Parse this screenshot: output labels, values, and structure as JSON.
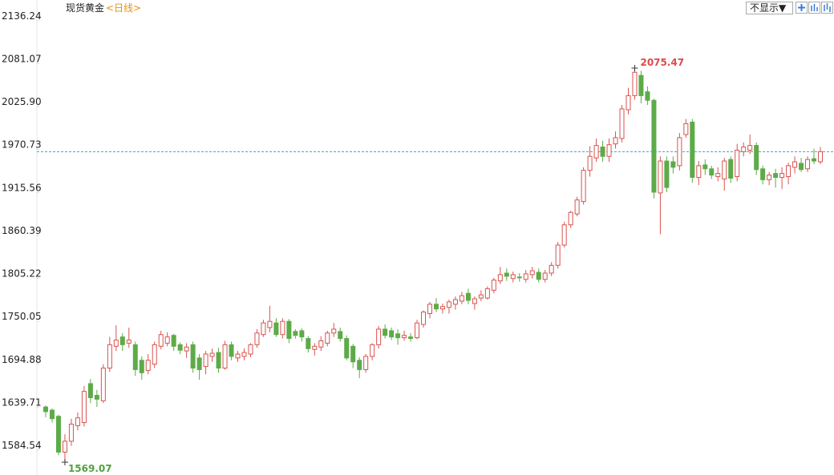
{
  "chart_data": {
    "type": "candlestick",
    "title": "现货黄金",
    "subtitle": "<日线>",
    "up_color": "#d9534f",
    "down_color": "#5cab48",
    "ylim": [
      1555.7,
      2162.9
    ],
    "yticks": [
      2136.24,
      2081.07,
      {
        "value": 2025.9,
        "label": "2025.90"
      },
      1970.73,
      1915.56,
      1860.39,
      1805.22,
      1750.05,
      1694.88,
      1639.71,
      1584.54
    ],
    "last_price": 1968,
    "high_label": 2075.47,
    "low_label": 1569.07,
    "ohlc": [
      [
        1640,
        1642,
        1627,
        1634
      ],
      [
        1636,
        1638,
        1620,
        1625
      ],
      [
        1628,
        1630,
        1578,
        1582
      ],
      [
        1582,
        1605,
        1569.07,
        1596
      ],
      [
        1596,
        1625,
        1590,
        1618
      ],
      [
        1616,
        1633,
        1610,
        1626
      ],
      [
        1620,
        1667,
        1615,
        1660
      ],
      [
        1670,
        1676,
        1645,
        1652
      ],
      [
        1655,
        1662,
        1640,
        1650
      ],
      [
        1648,
        1695,
        1645,
        1690
      ],
      [
        1690,
        1730,
        1685,
        1720
      ],
      [
        1718,
        1745,
        1712,
        1726
      ],
      [
        1730,
        1735,
        1712,
        1720
      ],
      [
        1722,
        1742,
        1716,
        1726
      ],
      [
        1720,
        1724,
        1680,
        1688
      ],
      [
        1700,
        1705,
        1675,
        1684
      ],
      [
        1687,
        1708,
        1682,
        1700
      ],
      [
        1695,
        1724,
        1690,
        1720
      ],
      [
        1718,
        1738,
        1714,
        1733
      ],
      [
        1722,
        1736,
        1718,
        1730
      ],
      [
        1732,
        1734,
        1712,
        1718
      ],
      [
        1720,
        1723,
        1708,
        1713
      ],
      [
        1712,
        1722,
        1703,
        1717
      ],
      [
        1720,
        1724,
        1684,
        1690
      ],
      [
        1703,
        1708,
        1675,
        1688
      ],
      [
        1692,
        1712,
        1682,
        1708
      ],
      [
        1705,
        1715,
        1698,
        1709
      ],
      [
        1710,
        1716,
        1684,
        1690
      ],
      [
        1690,
        1725,
        1688,
        1720
      ],
      [
        1720,
        1724,
        1700,
        1705
      ],
      [
        1703,
        1712,
        1698,
        1708
      ],
      [
        1705,
        1715,
        1700,
        1710
      ],
      [
        1708,
        1722,
        1704,
        1720
      ],
      [
        1720,
        1740,
        1716,
        1735
      ],
      [
        1733,
        1752,
        1730,
        1748
      ],
      [
        1742,
        1770,
        1736,
        1750
      ],
      [
        1748,
        1754,
        1730,
        1733
      ],
      [
        1733,
        1754,
        1728,
        1750
      ],
      [
        1750,
        1753,
        1722,
        1728
      ],
      [
        1737,
        1740,
        1728,
        1732
      ],
      [
        1738,
        1741,
        1724,
        1730
      ],
      [
        1728,
        1731,
        1710,
        1715
      ],
      [
        1714,
        1722,
        1706,
        1718
      ],
      [
        1717,
        1731,
        1712,
        1725
      ],
      [
        1722,
        1738,
        1718,
        1735
      ],
      [
        1735,
        1748,
        1730,
        1740
      ],
      [
        1737,
        1742,
        1724,
        1728
      ],
      [
        1728,
        1732,
        1700,
        1703
      ],
      [
        1718,
        1721,
        1690,
        1698
      ],
      [
        1700,
        1704,
        1677,
        1688
      ],
      [
        1688,
        1708,
        1684,
        1705
      ],
      [
        1705,
        1722,
        1700,
        1720
      ],
      [
        1720,
        1744,
        1715,
        1740
      ],
      [
        1740,
        1746,
        1728,
        1732
      ],
      [
        1738,
        1742,
        1726,
        1730
      ],
      [
        1734,
        1740,
        1720,
        1729
      ],
      [
        1729,
        1738,
        1725,
        1732
      ],
      [
        1730,
        1735,
        1724,
        1728
      ],
      [
        1729,
        1752,
        1727,
        1748
      ],
      [
        1746,
        1764,
        1742,
        1762
      ],
      [
        1760,
        1775,
        1754,
        1772
      ],
      [
        1772,
        1780,
        1762,
        1766
      ],
      [
        1766,
        1773,
        1760,
        1769
      ],
      [
        1768,
        1778,
        1760,
        1775
      ],
      [
        1772,
        1782,
        1765,
        1778
      ],
      [
        1776,
        1788,
        1772,
        1783
      ],
      [
        1786,
        1792,
        1772,
        1777
      ],
      [
        1773,
        1782,
        1765,
        1779
      ],
      [
        1780,
        1790,
        1776,
        1784
      ],
      [
        1780,
        1795,
        1778,
        1792
      ],
      [
        1790,
        1806,
        1786,
        1803
      ],
      [
        1802,
        1820,
        1798,
        1810
      ],
      [
        1812,
        1818,
        1802,
        1808
      ],
      [
        1805,
        1814,
        1800,
        1810
      ],
      [
        1807,
        1812,
        1801,
        1806
      ],
      [
        1804,
        1816,
        1800,
        1811
      ],
      [
        1810,
        1820,
        1805,
        1815
      ],
      [
        1813,
        1818,
        1800,
        1804
      ],
      [
        1804,
        1816,
        1800,
        1812
      ],
      [
        1812,
        1826,
        1808,
        1822
      ],
      [
        1822,
        1852,
        1818,
        1848
      ],
      [
        1848,
        1878,
        1845,
        1874
      ],
      [
        1874,
        1892,
        1870,
        1890
      ],
      [
        1888,
        1910,
        1885,
        1906
      ],
      [
        1904,
        1948,
        1900,
        1944
      ],
      [
        1944,
        1975,
        1936,
        1962
      ],
      [
        1960,
        1985,
        1955,
        1976
      ],
      [
        1974,
        1982,
        1955,
        1962
      ],
      [
        1962,
        1985,
        1955,
        1977
      ],
      [
        1978,
        1994,
        1972,
        1986
      ],
      [
        1985,
        2028,
        1980,
        2023
      ],
      [
        2022,
        2050,
        2016,
        2040
      ],
      [
        2040,
        2075.47,
        2035,
        2070
      ],
      [
        2066,
        2072,
        2030,
        2040
      ],
      [
        2045,
        2052,
        2028,
        2034
      ],
      [
        2034,
        2036,
        1908,
        1916
      ],
      [
        1915,
        1962,
        1862,
        1956
      ],
      [
        1956,
        1962,
        1916,
        1922
      ],
      [
        1955,
        1962,
        1940,
        1948
      ],
      [
        1950,
        1992,
        1944,
        1986
      ],
      [
        1990,
        2010,
        1986,
        2004
      ],
      [
        2006,
        2010,
        1928,
        1935
      ],
      [
        1935,
        1956,
        1925,
        1950
      ],
      [
        1951,
        1958,
        1938,
        1946
      ],
      [
        1946,
        1950,
        1933,
        1938
      ],
      [
        1936,
        1948,
        1930,
        1940
      ],
      [
        1933,
        1960,
        1918,
        1956
      ],
      [
        1958,
        1962,
        1928,
        1934
      ],
      [
        1936,
        1978,
        1930,
        1970
      ],
      [
        1968,
        1980,
        1962,
        1974
      ],
      [
        1970,
        1990,
        1965,
        1976
      ],
      [
        1976,
        1980,
        1938,
        1945
      ],
      [
        1946,
        1950,
        1926,
        1932
      ],
      [
        1932,
        1942,
        1925,
        1938
      ],
      [
        1940,
        1946,
        1922,
        1935
      ],
      [
        1935,
        1948,
        1920,
        1940
      ],
      [
        1936,
        1954,
        1926,
        1950
      ],
      [
        1948,
        1962,
        1940,
        1955
      ],
      [
        1953,
        1960,
        1942,
        1945
      ],
      [
        1946,
        1962,
        1942,
        1958
      ],
      [
        1959,
        1972,
        1952,
        1956
      ],
      [
        1955,
        1974,
        1952,
        1968
      ]
    ]
  },
  "toolbar": {
    "display_menu": "不显示▼"
  }
}
